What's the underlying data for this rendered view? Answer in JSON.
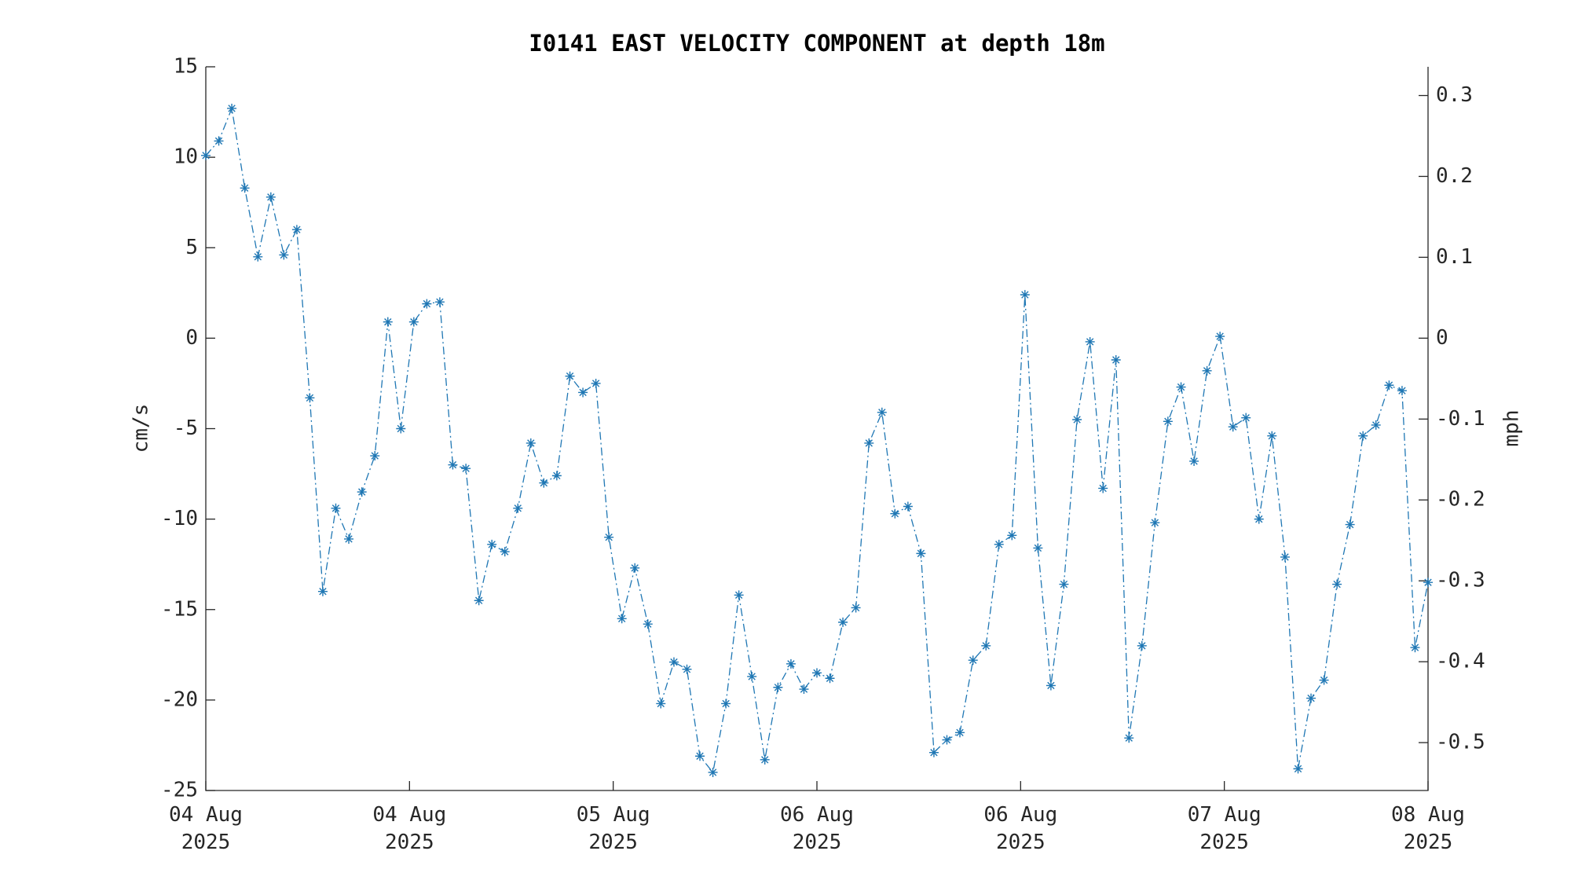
{
  "chart_data": {
    "type": "line",
    "title": "I0141 EAST VELOCITY COMPONENT at depth 18m",
    "y_label": "cm/s",
    "y2_label": "mph",
    "xlim": [
      0,
      96
    ],
    "xticks": [
      {
        "value": 0,
        "label": "04 Aug 2025"
      },
      {
        "value": 16,
        "label": "04 Aug 2025"
      },
      {
        "value": 32,
        "label": "05 Aug 2025"
      },
      {
        "value": 48,
        "label": "06 Aug 2025"
      },
      {
        "value": 64,
        "label": "06 Aug 2025"
      },
      {
        "value": 80,
        "label": "07 Aug 2025"
      },
      {
        "value": 96,
        "label": "08 Aug 2025"
      }
    ],
    "ylim": [
      -25,
      15
    ],
    "yticks": [
      15,
      10,
      5,
      0,
      -5,
      -10,
      -15,
      -20,
      -25
    ],
    "y2lim": [
      -0.5592,
      0.3355
    ],
    "y2ticks": [
      0.3,
      0.2,
      0.1,
      0,
      -0.1,
      -0.2,
      -0.3,
      -0.4,
      -0.5
    ],
    "series": [
      {
        "name": "East velocity",
        "color": "#1f77b4",
        "x": [
          0,
          1.02,
          2.04,
          3.06,
          4.09,
          5.11,
          6.13,
          7.15,
          8.17,
          9.19,
          10.21,
          11.23,
          12.26,
          13.28,
          14.3,
          15.32,
          16.34,
          17.36,
          18.38,
          19.4,
          20.43,
          21.45,
          22.47,
          23.49,
          24.51,
          25.53,
          26.55,
          27.57,
          28.6,
          29.62,
          30.64,
          31.66,
          32.68,
          33.7,
          34.72,
          35.74,
          36.77,
          37.79,
          38.81,
          39.83,
          40.85,
          41.87,
          42.89,
          43.91,
          44.94,
          45.96,
          46.98,
          48,
          49.02,
          50.04,
          51.06,
          52.09,
          53.11,
          54.13,
          55.15,
          56.17,
          57.19,
          58.21,
          59.23,
          60.26,
          61.28,
          62.3,
          63.32,
          64.34,
          65.36,
          66.38,
          67.4,
          68.43,
          69.45,
          70.47,
          71.49,
          72.51,
          73.53,
          74.55,
          75.57,
          76.6,
          77.62,
          78.64,
          79.66,
          80.68,
          81.7,
          82.72,
          83.74,
          84.77,
          85.79,
          86.81,
          87.83,
          88.85,
          89.87,
          90.89,
          91.91,
          92.94,
          93.96,
          94.98,
          96
        ],
        "values": [
          10.1,
          10.9,
          12.7,
          8.3,
          4.5,
          7.8,
          4.6,
          6.0,
          -3.3,
          -14.0,
          -9.4,
          -11.1,
          -8.5,
          -6.5,
          0.9,
          -5.0,
          0.9,
          1.9,
          2.0,
          -7.0,
          -7.2,
          -14.5,
          -11.4,
          -11.8,
          -9.4,
          -5.8,
          -8.0,
          -7.6,
          -2.1,
          -3.0,
          -2.5,
          -11.0,
          -15.5,
          -12.7,
          -15.8,
          -20.2,
          -17.9,
          -18.3,
          -23.1,
          -24.0,
          -20.2,
          -14.2,
          -18.7,
          -23.3,
          -19.3,
          -18.0,
          -19.4,
          -18.5,
          -18.8,
          -15.7,
          -14.9,
          -5.8,
          -4.1,
          -9.7,
          -9.3,
          -11.9,
          -22.9,
          -22.2,
          -21.8,
          -17.8,
          -17.0,
          -11.4,
          -10.9,
          2.4,
          -11.6,
          -19.2,
          -13.6,
          -4.5,
          -0.2,
          -8.3,
          -1.2,
          -22.1,
          -17.0,
          -10.2,
          -4.6,
          -2.7,
          -6.8,
          -1.8,
          0.1,
          -4.9,
          -4.4,
          -10.0,
          -5.4,
          -12.1,
          -23.8,
          -19.9,
          -18.9,
          -13.6,
          -10.3,
          -5.4,
          -4.8,
          -2.6,
          -2.9,
          -17.1,
          -13.5
        ]
      }
    ]
  }
}
